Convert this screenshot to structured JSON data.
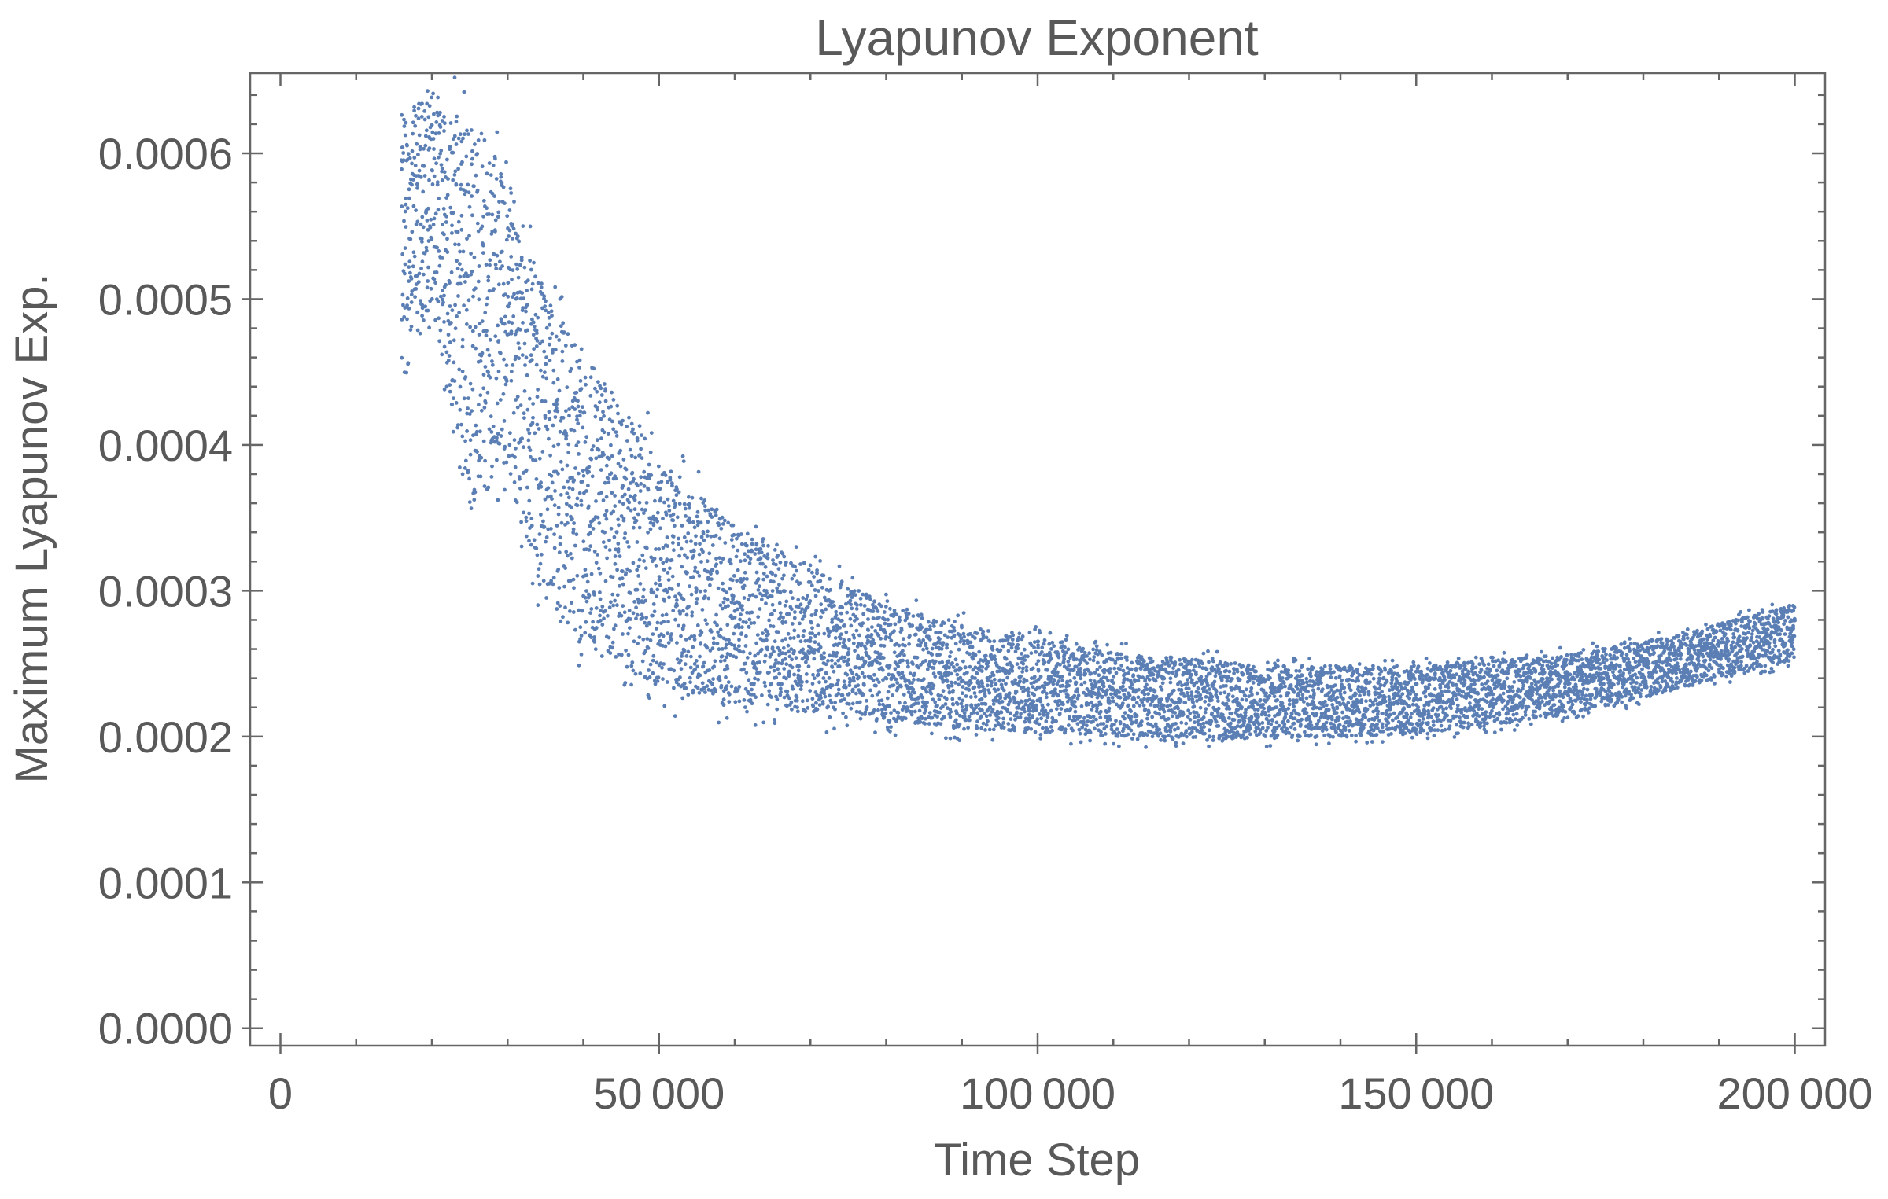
{
  "chart_data": {
    "type": "scatter",
    "title": "Lyapunov Exponent",
    "xlabel": "Time Step",
    "ylabel": "Maximum Lyapunov Exp.",
    "xlim": [
      -4000,
      204000
    ],
    "ylim": [
      -1.2e-05,
      0.000655
    ],
    "x_ticks": [
      0,
      50000,
      100000,
      150000,
      200000
    ],
    "x_tick_labels": [
      "0",
      "50 000",
      "100 000",
      "150 000",
      "200 000"
    ],
    "y_ticks": [
      0.0,
      0.0001,
      0.0002,
      0.0003,
      0.0004,
      0.0005,
      0.0006
    ],
    "y_tick_labels": [
      "0.0000",
      "0.0001",
      "0.0002",
      "0.0003",
      "0.0004",
      "0.0005",
      "0.0006"
    ],
    "grid": false,
    "legend": "none",
    "marker_color": "#5b7fb4",
    "series": [
      {
        "points_per_step": 1,
        "x_start": 16000,
        "x_end": 200000,
        "envelope": {
          "x": [
            16000,
            20000,
            25000,
            30000,
            35000,
            40000,
            45000,
            50000,
            60000,
            70000,
            80000,
            90000,
            100000,
            110000,
            120000,
            130000,
            140000,
            150000,
            160000,
            170000,
            180000,
            190000,
            200000
          ],
          "upper": [
            0.00065,
            0.00066,
            0.00066,
            0.00061,
            0.00053,
            0.00049,
            0.00045,
            0.00041,
            0.00036,
            0.00033,
            0.0003,
            0.000285,
            0.000275,
            0.000265,
            0.00026,
            0.000255,
            0.000255,
            0.000255,
            0.000258,
            0.000262,
            0.00027,
            0.000282,
            0.000295
          ],
          "lower": [
            0.00042,
            0.00048,
            0.00032,
            0.00036,
            0.00026,
            0.00024,
            0.000225,
            0.000215,
            0.000208,
            0.000203,
            0.0002,
            0.000197,
            0.000195,
            0.000193,
            0.000192,
            0.000192,
            0.000193,
            0.000196,
            0.000202,
            0.00021,
            0.000222,
            0.000235,
            0.000248
          ]
        }
      }
    ]
  }
}
